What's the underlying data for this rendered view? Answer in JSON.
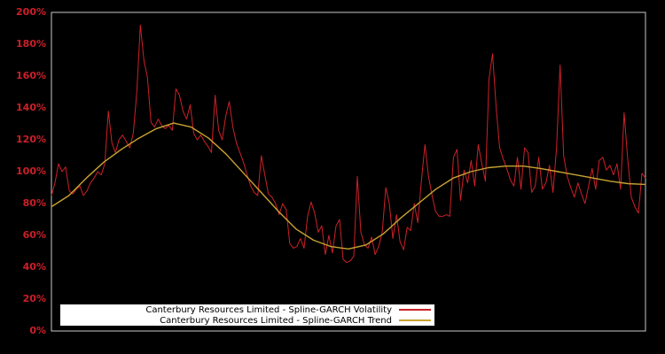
{
  "chart_data": {
    "type": "line",
    "title": "",
    "xlabel": "",
    "ylabel": "",
    "ylim": [
      0,
      200
    ],
    "x_axis_tick_labels": [],
    "grid": false,
    "background": "#000000",
    "legend_position": "inside-bottom-left",
    "y_ticks": [
      "0%",
      "20%",
      "40%",
      "60%",
      "80%",
      "100%",
      "120%",
      "140%",
      "160%",
      "180%",
      "200%"
    ],
    "colors": {
      "volatility": "#cc2128",
      "trend": "#c8a232",
      "axis_label": "#cd1f28",
      "frame": "#c8c8c8",
      "legend_bg": "#ffffff",
      "legend_text": "#000000"
    },
    "series": [
      {
        "name": "Canterbury Resources Limited - Spline-GARCH Volatility",
        "color_key": "volatility",
        "unit": "percent",
        "values": [
          85,
          93,
          105,
          100,
          103,
          88,
          86,
          89,
          91,
          85,
          88,
          93,
          96,
          100,
          98,
          105,
          138,
          118,
          112,
          120,
          123,
          119,
          115,
          124,
          150,
          192,
          170,
          159,
          131,
          128,
          133,
          129,
          127,
          129,
          126,
          152,
          148,
          138,
          133,
          142,
          124,
          120,
          123,
          119,
          116,
          112,
          148,
          126,
          120,
          135,
          144,
          128,
          118,
          112,
          106,
          98,
          91,
          87,
          85,
          110,
          98,
          86,
          84,
          80,
          73,
          80,
          76,
          55,
          52,
          53,
          58,
          52,
          72,
          81,
          74,
          62,
          66,
          48,
          60,
          49,
          66,
          70,
          45,
          43,
          44,
          47,
          97,
          62,
          54,
          52,
          59,
          48,
          53,
          62,
          90,
          80,
          58,
          73,
          56,
          51,
          65,
          63,
          80,
          68,
          94,
          117,
          97,
          85,
          75,
          72,
          72,
          73,
          72,
          109,
          114,
          82,
          101,
          93,
          107,
          91,
          117,
          105,
          94,
          158,
          174,
          141,
          115,
          108,
          102,
          95,
          91,
          109,
          89,
          115,
          112,
          87,
          91,
          109,
          89,
          93,
          104,
          87,
          115,
          167,
          110,
          97,
          90,
          84,
          93,
          86,
          80,
          91,
          102,
          89,
          107,
          109,
          101,
          104,
          98,
          105,
          89,
          137,
          108,
          84,
          78,
          74,
          99,
          96
        ]
      },
      {
        "name": "Canterbury Resources Limited - Spline-GARCH Trend",
        "color_key": "trend",
        "unit": "percent",
        "values": [
          78,
          85,
          96,
          106,
          114,
          121,
          127,
          130.5,
          128,
          121,
          111,
          99,
          87,
          75,
          64,
          57,
          53,
          51.5,
          54,
          61,
          71,
          80,
          89,
          96,
          100,
          102.5,
          103.5,
          103.5,
          102,
          100,
          98,
          96,
          94,
          92.5,
          92
        ]
      }
    ]
  }
}
